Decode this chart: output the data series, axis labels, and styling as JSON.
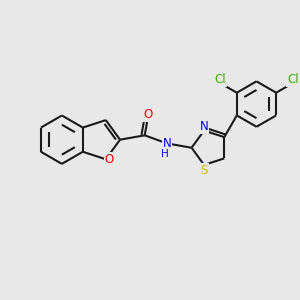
{
  "bg_color": "#e8e8e8",
  "bond_color": "#1a1a1a",
  "bond_width": 1.5,
  "atom_colors": {
    "O": "#ff0000",
    "N": "#0000ff",
    "S": "#ccb800",
    "Cl": "#44aa00",
    "C": "#1a1a1a"
  },
  "font_size": 8.5,
  "xlim": [
    0,
    10
  ],
  "ylim": [
    0,
    10
  ]
}
